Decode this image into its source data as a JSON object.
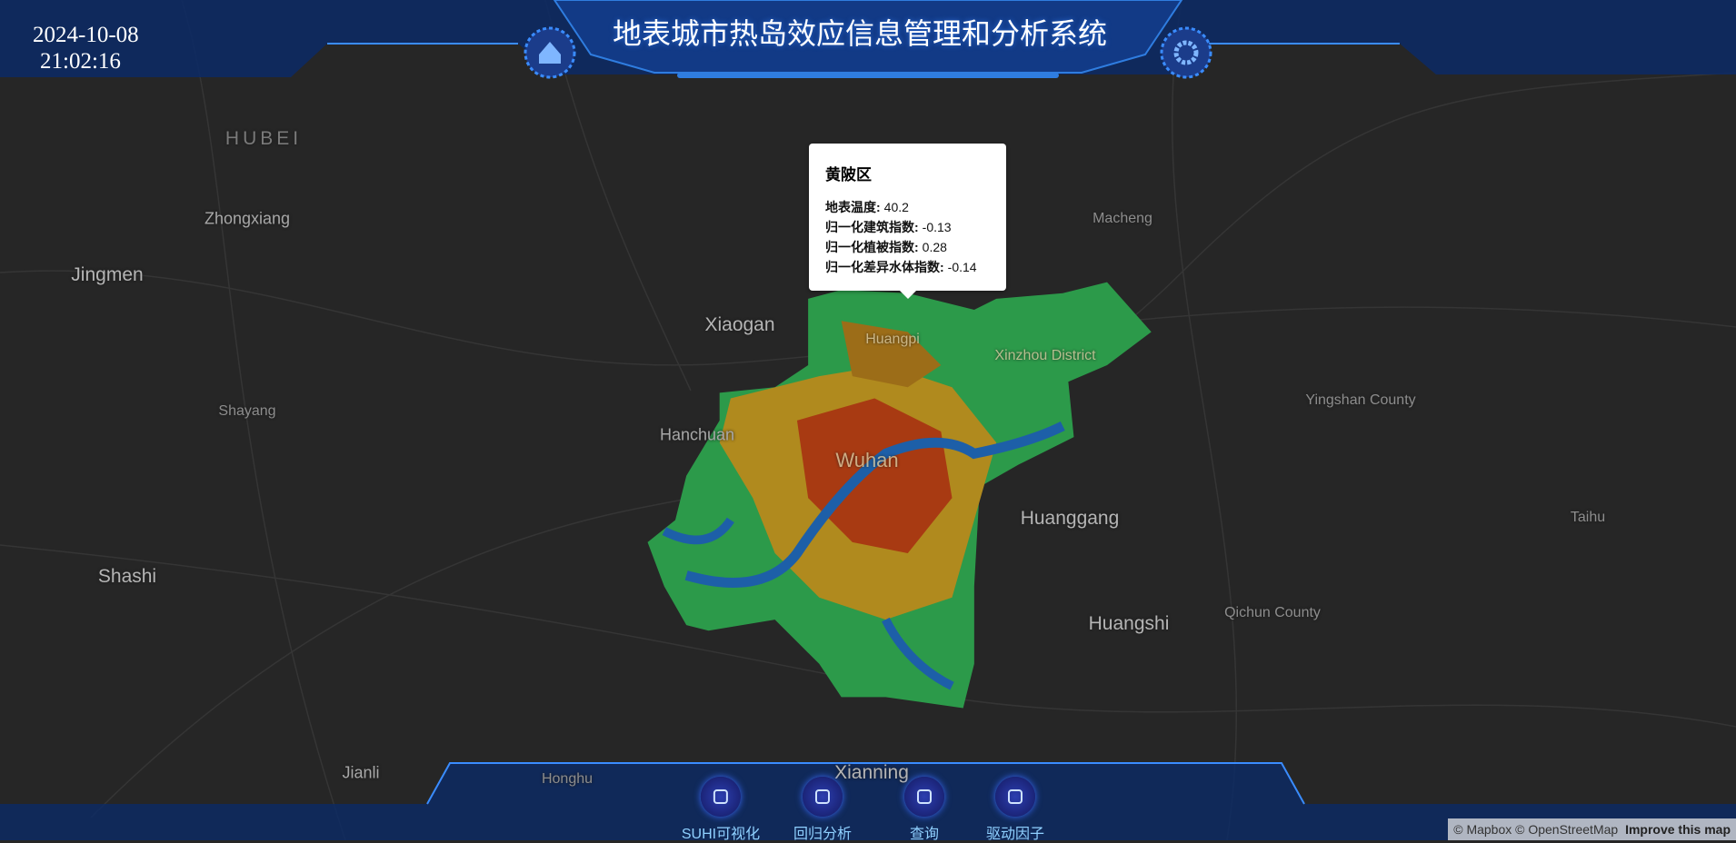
{
  "header": {
    "date": "2024-10-08",
    "time": "21:02:16",
    "title": "地表城市热岛效应信息管理和分析系统"
  },
  "map_labels": [
    {
      "text": "HUBEI"
    },
    {
      "text": "Zhongxiang"
    },
    {
      "text": "Jingmen"
    },
    {
      "text": "Xiaogan"
    },
    {
      "text": "Shayang"
    },
    {
      "text": "Hanchuan"
    },
    {
      "text": "Wuhan"
    },
    {
      "text": "Huangpi"
    },
    {
      "text": "Xinzhou District"
    },
    {
      "text": "Macheng"
    },
    {
      "text": "Yingshan County"
    },
    {
      "text": "Huanggang"
    },
    {
      "text": "Taihu"
    },
    {
      "text": "Shashi"
    },
    {
      "text": "Huangshi"
    },
    {
      "text": "Qichun County"
    },
    {
      "text": "Jianli"
    },
    {
      "text": "Honghu"
    },
    {
      "text": "Xianning"
    }
  ],
  "popup": {
    "title": "黄陂区",
    "fields": [
      {
        "label": "地表温度:",
        "value": 40.2
      },
      {
        "label": "归一化建筑指数:",
        "value": -0.13
      },
      {
        "label": "归一化植被指数:",
        "value": 0.28
      },
      {
        "label": "归一化差异水体指数:",
        "value": -0.14
      }
    ]
  },
  "nav": [
    "SUHI可视化",
    "回归分析",
    "查询",
    "驱动因子"
  ],
  "attribution": {
    "mapbox": "© Mapbox",
    "osm": "© OpenStreetMap",
    "improve": "Improve this map"
  }
}
